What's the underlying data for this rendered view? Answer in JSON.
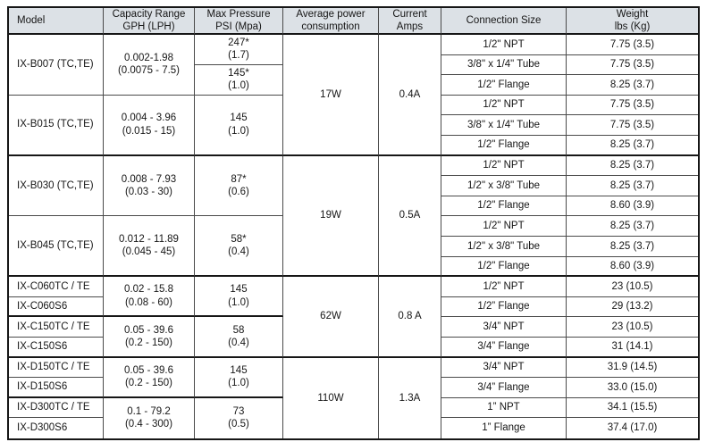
{
  "table": {
    "header": {
      "model": "Model",
      "capacity": "Capacity Range\nGPH (LPH)",
      "pressure": "Max Pressure\nPSI (Mpa)",
      "power": "Average power\nconsumption",
      "current": "Current\nAmps",
      "connection": "Connection Size",
      "weight": "Weight\nlbs (Kg)"
    },
    "power_groups": [
      {
        "power": "17W",
        "current": "0.4A"
      },
      {
        "power": "19W",
        "current": "0.5A"
      },
      {
        "power": "62W",
        "current": "0.8 A"
      },
      {
        "power": "110W",
        "current": "1.3A"
      }
    ],
    "groups": [
      {
        "models": [
          "IX-B007 (TC,TE)"
        ],
        "capacity": "0.002-1.98\n(0.0075 - 7.5)",
        "pressures": [
          "247*\n(1.7)",
          "145*\n(1.0)"
        ],
        "rows": [
          {
            "connection": "1/2\" NPT",
            "weight": "7.75 (3.5)"
          },
          {
            "connection": "3/8\" x 1/4\" Tube",
            "weight": "7.75 (3.5)"
          },
          {
            "connection": "1/2\" Flange",
            "weight": "8.25 (3.7)"
          }
        ]
      },
      {
        "models": [
          "IX-B015 (TC,TE)"
        ],
        "capacity": "0.004 - 3.96\n(0.015 - 15)",
        "pressures": [
          "145\n(1.0)"
        ],
        "rows": [
          {
            "connection": "1/2\" NPT",
            "weight": "7.75 (3.5)"
          },
          {
            "connection": "3/8\" x 1/4\" Tube",
            "weight": "7.75 (3.5)"
          },
          {
            "connection": "1/2\" Flange",
            "weight": "8.25 (3.7)"
          }
        ]
      },
      {
        "models": [
          "IX-B030 (TC,TE)"
        ],
        "capacity": "0.008 - 7.93\n(0.03 - 30)",
        "pressures": [
          "87*\n(0.6)"
        ],
        "rows": [
          {
            "connection": "1/2\" NPT",
            "weight": "8.25 (3.7)"
          },
          {
            "connection": "1/2\" x 3/8\" Tube",
            "weight": "8.25 (3.7)"
          },
          {
            "connection": "1/2\" Flange",
            "weight": "8.60 (3.9)"
          }
        ]
      },
      {
        "models": [
          "IX-B045 (TC,TE)"
        ],
        "capacity": "0.012 - 11.89\n(0.045 - 45)",
        "pressures": [
          "58*\n(0.4)"
        ],
        "rows": [
          {
            "connection": "1/2\" NPT",
            "weight": "8.25 (3.7)"
          },
          {
            "connection": "1/2\" x 3/8\" Tube",
            "weight": "8.25 (3.7)"
          },
          {
            "connection": "1/2\" Flange",
            "weight": "8.60 (3.9)"
          }
        ]
      },
      {
        "models": [
          "IX-C060TC / TE",
          "IX-C060S6"
        ],
        "capacity": "0.02 - 15.8\n(0.08 - 60)",
        "pressures": [
          "145\n(1.0)"
        ],
        "rows": [
          {
            "connection": "1/2” NPT",
            "weight": "23 (10.5)"
          },
          {
            "connection": "1/2” Flange",
            "weight": "29 (13.2)"
          }
        ]
      },
      {
        "models": [
          "IX-C150TC / TE",
          "IX-C150S6"
        ],
        "capacity": "0.05 - 39.6\n(0.2 - 150)",
        "pressures": [
          "58\n(0.4)"
        ],
        "rows": [
          {
            "connection": "3/4” NPT",
            "weight": "23 (10.5)"
          },
          {
            "connection": "3/4” Flange",
            "weight": "31 (14.1)"
          }
        ]
      },
      {
        "models": [
          "IX-D150TC / TE",
          "IX-D150S6"
        ],
        "capacity": "0.05 - 39.6\n(0.2 - 150)",
        "pressures": [
          "145\n(1.0)"
        ],
        "rows": [
          {
            "connection": "3/4” NPT",
            "weight": "31.9 (14.5)"
          },
          {
            "connection": "3/4” Flange",
            "weight": "33.0 (15.0)"
          }
        ]
      },
      {
        "models": [
          "IX-D300TC / TE",
          "IX-D300S6"
        ],
        "capacity": "0.1 - 79.2\n(0.4 - 300)",
        "pressures": [
          "73\n(0.5)"
        ],
        "rows": [
          {
            "connection": "1” NPT",
            "weight": "34.1 (15.5)"
          },
          {
            "connection": "1” Flange",
            "weight": "37.4 (17.0)"
          }
        ]
      }
    ]
  }
}
